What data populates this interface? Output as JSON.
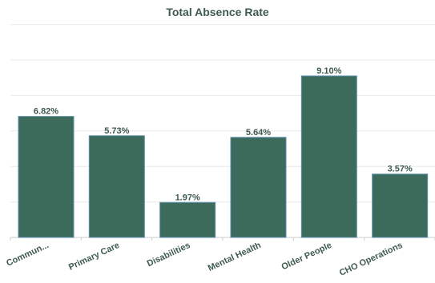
{
  "chart_data": {
    "type": "bar",
    "title": "Total Absence Rate",
    "categories": [
      "Commun...",
      "Primary Care",
      "Disabilities",
      "Mental Health",
      "Older People",
      "CHO Operations"
    ],
    "values": [
      6.82,
      5.73,
      1.97,
      5.64,
      9.1,
      3.57
    ],
    "value_labels": [
      "6.82%",
      "5.73%",
      "1.97%",
      "5.64%",
      "9.10%",
      "3.57%"
    ],
    "ylim": [
      0,
      12
    ],
    "grid": true,
    "legend": "none",
    "colors": {
      "bar": "#3c6b5c",
      "bar_stroke": "#5b8fb0",
      "text": "#3e5b4d",
      "grid": "#e8e8e8",
      "axis": "#cccccc"
    }
  }
}
